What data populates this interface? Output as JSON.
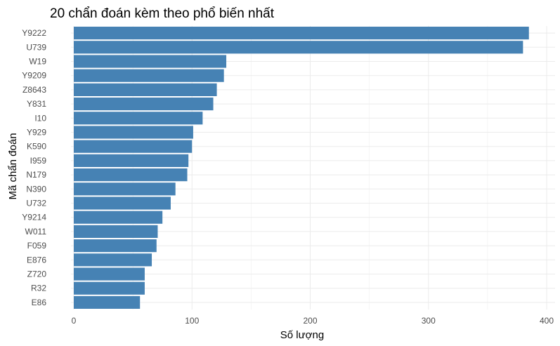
{
  "chart_data": {
    "type": "bar",
    "orientation": "horizontal",
    "title": "20 chẩn đoán kèm theo phổ biến nhất",
    "xlabel": "Số lượng",
    "ylabel": "Mã chẩn đoán",
    "categories": [
      "Y9222",
      "U739",
      "W19",
      "Y9209",
      "Z8643",
      "Y831",
      "I10",
      "Y929",
      "K590",
      "I959",
      "N179",
      "N390",
      "U732",
      "Y9214",
      "W011",
      "F059",
      "E876",
      "Z720",
      "R32",
      "E86"
    ],
    "values": [
      385,
      380,
      129,
      127,
      121,
      118,
      109,
      101,
      100,
      97,
      96,
      86,
      82,
      75,
      71,
      70,
      66,
      60,
      60,
      56
    ],
    "xlim": [
      0,
      400
    ],
    "x_ticks": [
      0,
      100,
      200,
      300,
      400
    ],
    "grid": true,
    "bar_color": "#4682B4",
    "legend": "none"
  }
}
